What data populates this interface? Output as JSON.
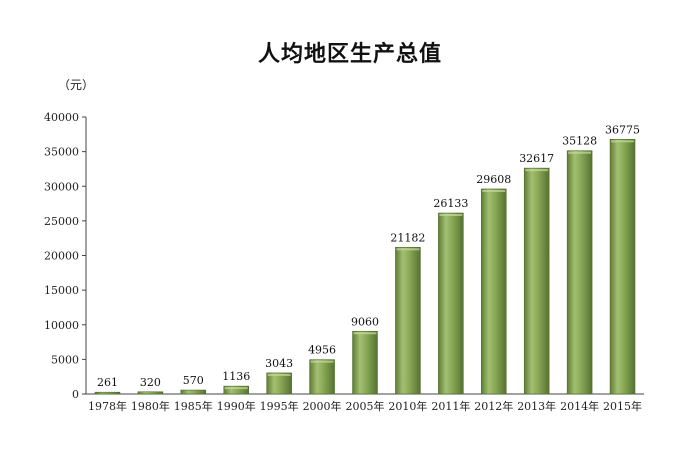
{
  "chart_data": {
    "type": "bar",
    "title": "人均地区生产总值",
    "ylabel": "（元）",
    "xlabel": "",
    "ylim": [
      0,
      40000
    ],
    "yticks": [
      0,
      5000,
      10000,
      15000,
      20000,
      25000,
      30000,
      35000,
      40000
    ],
    "categories": [
      "1978年",
      "1980年",
      "1985年",
      "1990年",
      "1995年",
      "2000年",
      "2005年",
      "2010年",
      "2011年",
      "2012年",
      "2013年",
      "2014年",
      "2015年"
    ],
    "values": [
      261,
      320,
      570,
      1136,
      3043,
      4956,
      9060,
      21182,
      26133,
      29608,
      32617,
      35128,
      36775
    ],
    "bar_color": "#7f9e4e",
    "grid": false,
    "legend": "none"
  }
}
